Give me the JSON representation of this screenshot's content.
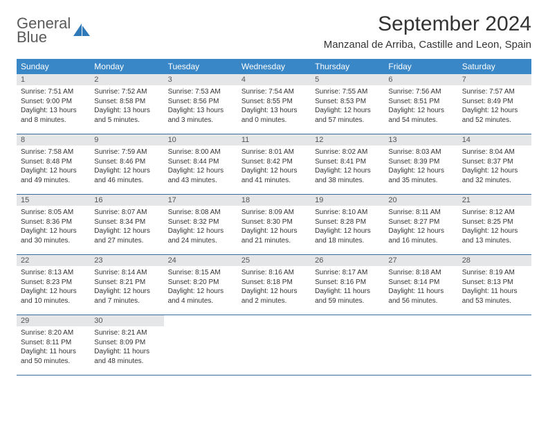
{
  "logo": {
    "line1": "General",
    "line2": "Blue"
  },
  "title": "September 2024",
  "location": "Manzanal de Arriba, Castille and Leon, Spain",
  "colors": {
    "header_bg": "#3a87c8",
    "header_text": "#ffffff",
    "daynum_bg": "#e5e6e8",
    "border": "#3a6a9a",
    "logo_gray": "#5a5a5a",
    "logo_blue": "#2f79b9"
  },
  "weekdays": [
    "Sunday",
    "Monday",
    "Tuesday",
    "Wednesday",
    "Thursday",
    "Friday",
    "Saturday"
  ],
  "weeks": [
    [
      {
        "n": "1",
        "sr": "7:51 AM",
        "ss": "9:00 PM",
        "dl": "13 hours and 8 minutes."
      },
      {
        "n": "2",
        "sr": "7:52 AM",
        "ss": "8:58 PM",
        "dl": "13 hours and 5 minutes."
      },
      {
        "n": "3",
        "sr": "7:53 AM",
        "ss": "8:56 PM",
        "dl": "13 hours and 3 minutes."
      },
      {
        "n": "4",
        "sr": "7:54 AM",
        "ss": "8:55 PM",
        "dl": "13 hours and 0 minutes."
      },
      {
        "n": "5",
        "sr": "7:55 AM",
        "ss": "8:53 PM",
        "dl": "12 hours and 57 minutes."
      },
      {
        "n": "6",
        "sr": "7:56 AM",
        "ss": "8:51 PM",
        "dl": "12 hours and 54 minutes."
      },
      {
        "n": "7",
        "sr": "7:57 AM",
        "ss": "8:49 PM",
        "dl": "12 hours and 52 minutes."
      }
    ],
    [
      {
        "n": "8",
        "sr": "7:58 AM",
        "ss": "8:48 PM",
        "dl": "12 hours and 49 minutes."
      },
      {
        "n": "9",
        "sr": "7:59 AM",
        "ss": "8:46 PM",
        "dl": "12 hours and 46 minutes."
      },
      {
        "n": "10",
        "sr": "8:00 AM",
        "ss": "8:44 PM",
        "dl": "12 hours and 43 minutes."
      },
      {
        "n": "11",
        "sr": "8:01 AM",
        "ss": "8:42 PM",
        "dl": "12 hours and 41 minutes."
      },
      {
        "n": "12",
        "sr": "8:02 AM",
        "ss": "8:41 PM",
        "dl": "12 hours and 38 minutes."
      },
      {
        "n": "13",
        "sr": "8:03 AM",
        "ss": "8:39 PM",
        "dl": "12 hours and 35 minutes."
      },
      {
        "n": "14",
        "sr": "8:04 AM",
        "ss": "8:37 PM",
        "dl": "12 hours and 32 minutes."
      }
    ],
    [
      {
        "n": "15",
        "sr": "8:05 AM",
        "ss": "8:36 PM",
        "dl": "12 hours and 30 minutes."
      },
      {
        "n": "16",
        "sr": "8:07 AM",
        "ss": "8:34 PM",
        "dl": "12 hours and 27 minutes."
      },
      {
        "n": "17",
        "sr": "8:08 AM",
        "ss": "8:32 PM",
        "dl": "12 hours and 24 minutes."
      },
      {
        "n": "18",
        "sr": "8:09 AM",
        "ss": "8:30 PM",
        "dl": "12 hours and 21 minutes."
      },
      {
        "n": "19",
        "sr": "8:10 AM",
        "ss": "8:28 PM",
        "dl": "12 hours and 18 minutes."
      },
      {
        "n": "20",
        "sr": "8:11 AM",
        "ss": "8:27 PM",
        "dl": "12 hours and 16 minutes."
      },
      {
        "n": "21",
        "sr": "8:12 AM",
        "ss": "8:25 PM",
        "dl": "12 hours and 13 minutes."
      }
    ],
    [
      {
        "n": "22",
        "sr": "8:13 AM",
        "ss": "8:23 PM",
        "dl": "12 hours and 10 minutes."
      },
      {
        "n": "23",
        "sr": "8:14 AM",
        "ss": "8:21 PM",
        "dl": "12 hours and 7 minutes."
      },
      {
        "n": "24",
        "sr": "8:15 AM",
        "ss": "8:20 PM",
        "dl": "12 hours and 4 minutes."
      },
      {
        "n": "25",
        "sr": "8:16 AM",
        "ss": "8:18 PM",
        "dl": "12 hours and 2 minutes."
      },
      {
        "n": "26",
        "sr": "8:17 AM",
        "ss": "8:16 PM",
        "dl": "11 hours and 59 minutes."
      },
      {
        "n": "27",
        "sr": "8:18 AM",
        "ss": "8:14 PM",
        "dl": "11 hours and 56 minutes."
      },
      {
        "n": "28",
        "sr": "8:19 AM",
        "ss": "8:13 PM",
        "dl": "11 hours and 53 minutes."
      }
    ],
    [
      {
        "n": "29",
        "sr": "8:20 AM",
        "ss": "8:11 PM",
        "dl": "11 hours and 50 minutes."
      },
      {
        "n": "30",
        "sr": "8:21 AM",
        "ss": "8:09 PM",
        "dl": "11 hours and 48 minutes."
      },
      null,
      null,
      null,
      null,
      null
    ]
  ],
  "labels": {
    "sunrise": "Sunrise:",
    "sunset": "Sunset:",
    "daylight": "Daylight:"
  }
}
